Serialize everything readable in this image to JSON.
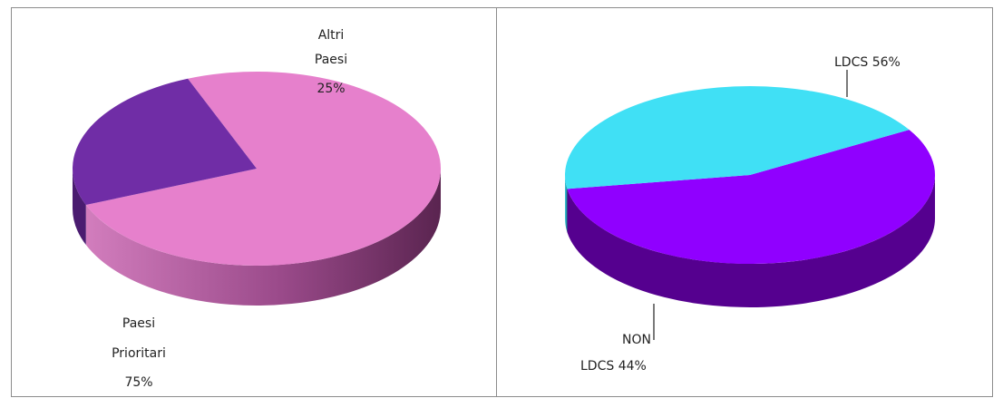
{
  "chart_data": [
    {
      "type": "pie",
      "title": "",
      "slices": [
        {
          "label_lines": [
            "Paesi",
            "Prioritari",
            "75%"
          ],
          "value": 75,
          "top_color": "#e680cc",
          "side_color": "#a64d93"
        },
        {
          "label_lines": [
            "Altri",
            "Paesi",
            "25%"
          ],
          "value": 25,
          "top_color": "#702da6",
          "side_color": "#4a1c70"
        }
      ]
    },
    {
      "type": "pie",
      "title": "",
      "slices": [
        {
          "label_lines": [
            "LDCS 56%"
          ],
          "value": 56,
          "top_color": "#9000ff",
          "side_color": "#55008f"
        },
        {
          "label_lines": [
            "NON",
            "LDCS 44%"
          ],
          "value": 44,
          "top_color": "#40e0f5",
          "side_color": "#2aa3b3"
        }
      ]
    }
  ]
}
